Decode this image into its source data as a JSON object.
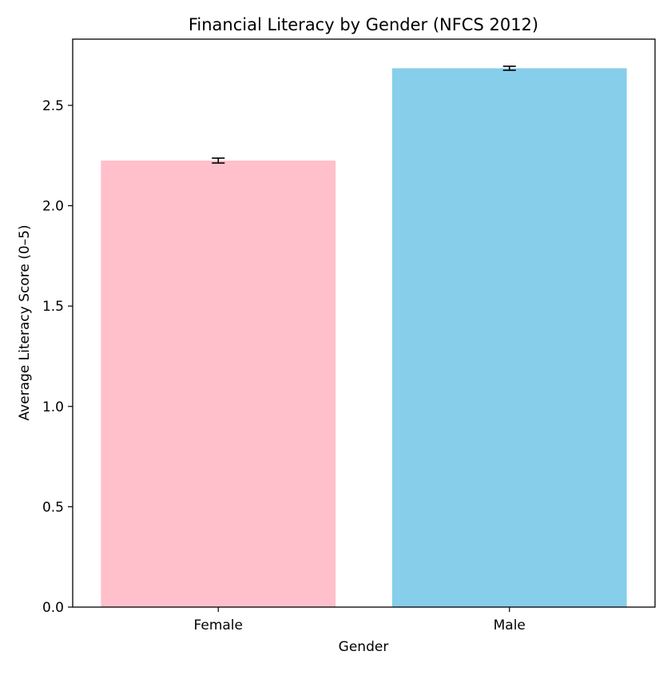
{
  "chart_data": {
    "type": "bar",
    "title": "Financial Literacy by Gender (NFCS 2012)",
    "xlabel": "Gender",
    "ylabel": "Average Literacy Score (0–5)",
    "categories": [
      "Female",
      "Male"
    ],
    "values": [
      2.225,
      2.685
    ],
    "error": [
      0.012,
      0.01
    ],
    "colors": [
      "#ffc0cb",
      "#87ceeb"
    ],
    "ylim": [
      0,
      2.83
    ],
    "yticks": [
      "0.0",
      "0.5",
      "1.0",
      "1.5",
      "2.0",
      "2.5"
    ],
    "grid": false,
    "legend": "none"
  }
}
